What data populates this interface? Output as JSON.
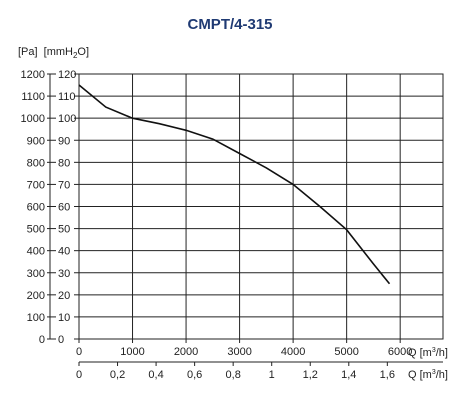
{
  "chart_data": {
    "type": "line",
    "title": "CMPT/4-315",
    "y_left_label_unit_a": "[Pa]",
    "y_left_label_unit_b": "[mmH",
    "y_left_label_sub": "2",
    "y_left_label_close": "O]",
    "y_pa_ticks": [
      "0",
      "100",
      "200",
      "300",
      "400",
      "500",
      "600",
      "700",
      "800",
      "900",
      "1000",
      "1100",
      "1200"
    ],
    "y_mm_ticks": [
      "0",
      "10",
      "20",
      "30",
      "40",
      "50",
      "60",
      "70",
      "80",
      "90",
      "100",
      "110",
      "120"
    ],
    "x_m3h_ticks": [
      "0",
      "1000",
      "2000",
      "3000",
      "4000",
      "5000",
      "6000"
    ],
    "x_m3s_ticks": [
      "0",
      "0,2",
      "0,4",
      "0,6",
      "0,8",
      "1",
      "1,2",
      "1,4",
      "1,6"
    ],
    "x_m3h_label": "Q [m",
    "x_m3h_sup": "3",
    "x_m3h_close": "/h]",
    "x_m3s_label": "Q [m",
    "x_m3s_sup": "3",
    "x_m3s_close": "/h]",
    "xlim": [
      0,
      6800
    ],
    "ylim": [
      0,
      1200
    ],
    "series": [
      {
        "x": [
          0,
          500,
          1000,
          1500,
          2000,
          2500,
          3000,
          3500,
          4000,
          4500,
          5000,
          5500,
          5800
        ],
        "y": [
          1150,
          1050,
          1000,
          975,
          945,
          905,
          840,
          775,
          700,
          600,
          495,
          340,
          250
        ]
      }
    ]
  }
}
